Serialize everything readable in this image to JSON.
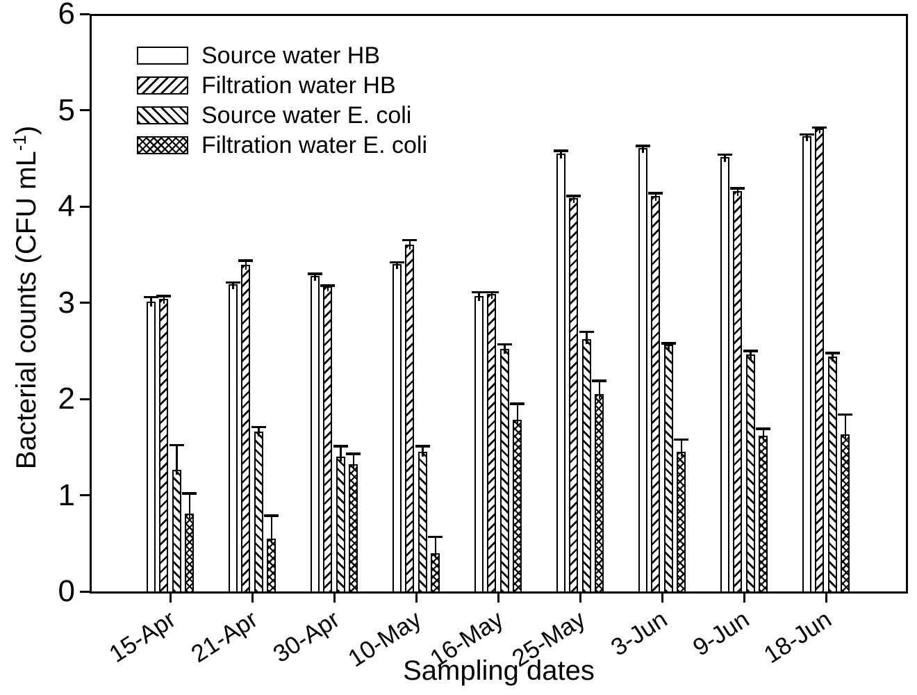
{
  "figure": {
    "background": "#ffffff",
    "foreground": "#000000"
  },
  "chart_data": {
    "type": "bar",
    "title": "",
    "xlabel": "Sampling dates",
    "ylabel": "Bacterial counts (CFU mL⁻¹)",
    "ylabel_parts": {
      "text": "Bacterial counts (CFU mL",
      "superscript": "-1",
      "close": ")"
    },
    "ylim": [
      0,
      6
    ],
    "yticks": [
      0,
      1,
      2,
      3,
      4,
      5,
      6
    ],
    "grid": false,
    "legend_position": "top-left-inside",
    "error_bars": "upper, with caps",
    "categories": [
      "15-Apr",
      "21-Apr",
      "30-Apr",
      "10-May",
      "16-May",
      "25-May",
      "3-Jun",
      "9-Jun",
      "18-Jun"
    ],
    "series": [
      {
        "name": "Source water HB",
        "hatch": "none",
        "values": [
          3.01,
          3.19,
          3.28,
          3.4,
          3.07,
          4.55,
          4.61,
          4.51,
          4.73
        ],
        "errors": [
          0.05,
          0.02,
          0.02,
          0.02,
          0.04,
          0.03,
          0.02,
          0.03,
          0.02
        ]
      },
      {
        "name": "Filtration water HB",
        "hatch": "forward-diagonal",
        "values": [
          3.04,
          3.39,
          3.17,
          3.6,
          3.09,
          4.09,
          4.11,
          4.16,
          4.81
        ],
        "errors": [
          0.03,
          0.05,
          0.01,
          0.05,
          0.02,
          0.02,
          0.03,
          0.03,
          0.01
        ]
      },
      {
        "name": "Source water E. coli",
        "hatch": "back-diagonal",
        "values": [
          1.26,
          1.66,
          1.4,
          1.45,
          2.52,
          2.62,
          2.56,
          2.46,
          2.44
        ],
        "errors": [
          0.26,
          0.05,
          0.11,
          0.06,
          0.05,
          0.08,
          0.02,
          0.04,
          0.04
        ]
      },
      {
        "name": "Filtration water E. coli",
        "hatch": "cross",
        "values": [
          0.81,
          0.55,
          1.32,
          0.4,
          1.78,
          2.05,
          1.45,
          1.62,
          1.63
        ],
        "errors": [
          0.21,
          0.24,
          0.11,
          0.17,
          0.17,
          0.14,
          0.13,
          0.07,
          0.21
        ]
      }
    ]
  }
}
